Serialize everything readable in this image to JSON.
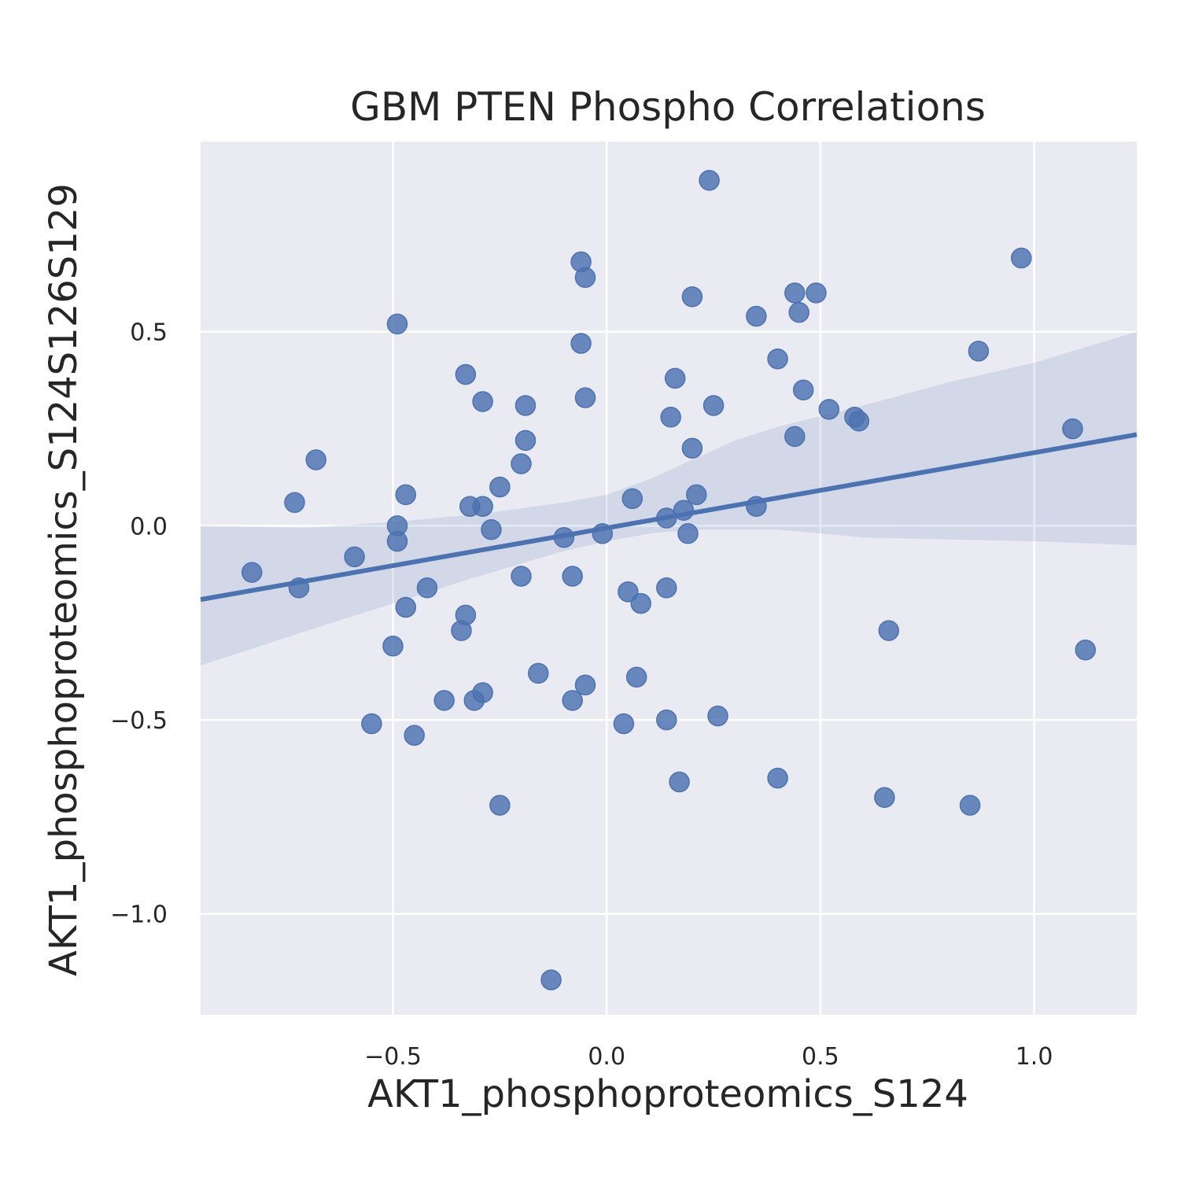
{
  "chart_data": {
    "type": "scatter",
    "title": "GBM PTEN Phospho Correlations",
    "xlabel": "AKT1_phosphoproteomics_S124",
    "ylabel": "AKT1_phosphoproteomics_S124S126S129",
    "xlim": [
      -0.95,
      1.24
    ],
    "ylim": [
      -1.26,
      0.99
    ],
    "xticks": [
      {
        "value": -0.5,
        "label": "−0.5"
      },
      {
        "value": 0.0,
        "label": "0.0"
      },
      {
        "value": 0.5,
        "label": "0.5"
      },
      {
        "value": 1.0,
        "label": "1.0"
      }
    ],
    "yticks": [
      {
        "value": 0.5,
        "label": "0.5"
      },
      {
        "value": 0.0,
        "label": "0.0"
      },
      {
        "value": -0.5,
        "label": "−0.5"
      },
      {
        "value": -1.0,
        "label": "−1.0"
      }
    ],
    "grid": true,
    "colors": {
      "background": "#eaeaf2",
      "grid": "#ffffff",
      "points": "#4c72b0",
      "line": "#4c72b0",
      "band": "#4c72b0"
    },
    "points": [
      {
        "x": 0.24,
        "y": 0.89
      },
      {
        "x": -0.06,
        "y": 0.68
      },
      {
        "x": -0.05,
        "y": 0.64
      },
      {
        "x": 0.97,
        "y": 0.69
      },
      {
        "x": 0.2,
        "y": 0.59
      },
      {
        "x": 0.44,
        "y": 0.6
      },
      {
        "x": 0.49,
        "y": 0.6
      },
      {
        "x": 0.35,
        "y": 0.54
      },
      {
        "x": 0.45,
        "y": 0.55
      },
      {
        "x": -0.49,
        "y": 0.52
      },
      {
        "x": -0.06,
        "y": 0.47
      },
      {
        "x": 0.4,
        "y": 0.43
      },
      {
        "x": 0.87,
        "y": 0.45
      },
      {
        "x": -0.33,
        "y": 0.39
      },
      {
        "x": 0.16,
        "y": 0.38
      },
      {
        "x": 0.46,
        "y": 0.35
      },
      {
        "x": -0.05,
        "y": 0.33
      },
      {
        "x": -0.29,
        "y": 0.32
      },
      {
        "x": -0.19,
        "y": 0.31
      },
      {
        "x": 0.25,
        "y": 0.31
      },
      {
        "x": 0.52,
        "y": 0.3
      },
      {
        "x": 0.15,
        "y": 0.28
      },
      {
        "x": 0.58,
        "y": 0.28
      },
      {
        "x": 0.59,
        "y": 0.27
      },
      {
        "x": 1.09,
        "y": 0.25
      },
      {
        "x": 0.44,
        "y": 0.23
      },
      {
        "x": -0.19,
        "y": 0.22
      },
      {
        "x": 0.2,
        "y": 0.2
      },
      {
        "x": -0.68,
        "y": 0.17
      },
      {
        "x": -0.2,
        "y": 0.16
      },
      {
        "x": -0.25,
        "y": 0.1
      },
      {
        "x": -0.47,
        "y": 0.08
      },
      {
        "x": 0.21,
        "y": 0.08
      },
      {
        "x": 0.06,
        "y": 0.07
      },
      {
        "x": -0.73,
        "y": 0.06
      },
      {
        "x": -0.32,
        "y": 0.05
      },
      {
        "x": -0.29,
        "y": 0.05
      },
      {
        "x": 0.35,
        "y": 0.05
      },
      {
        "x": 0.18,
        "y": 0.04
      },
      {
        "x": 0.14,
        "y": 0.02
      },
      {
        "x": -0.49,
        "y": 0.0
      },
      {
        "x": -0.27,
        "y": -0.01
      },
      {
        "x": -0.01,
        "y": -0.02
      },
      {
        "x": 0.19,
        "y": -0.02
      },
      {
        "x": -0.1,
        "y": -0.03
      },
      {
        "x": -0.49,
        "y": -0.04
      },
      {
        "x": -0.59,
        "y": -0.08
      },
      {
        "x": -0.83,
        "y": -0.12
      },
      {
        "x": -0.2,
        "y": -0.13
      },
      {
        "x": -0.08,
        "y": -0.13
      },
      {
        "x": -0.72,
        "y": -0.16
      },
      {
        "x": -0.42,
        "y": -0.16
      },
      {
        "x": 0.14,
        "y": -0.16
      },
      {
        "x": 0.05,
        "y": -0.17
      },
      {
        "x": 0.08,
        "y": -0.2
      },
      {
        "x": -0.47,
        "y": -0.21
      },
      {
        "x": -0.33,
        "y": -0.23
      },
      {
        "x": -0.34,
        "y": -0.27
      },
      {
        "x": 0.66,
        "y": -0.27
      },
      {
        "x": -0.5,
        "y": -0.31
      },
      {
        "x": 1.12,
        "y": -0.32
      },
      {
        "x": -0.16,
        "y": -0.38
      },
      {
        "x": 0.07,
        "y": -0.39
      },
      {
        "x": -0.05,
        "y": -0.41
      },
      {
        "x": -0.29,
        "y": -0.43
      },
      {
        "x": -0.38,
        "y": -0.45
      },
      {
        "x": -0.31,
        "y": -0.45
      },
      {
        "x": -0.08,
        "y": -0.45
      },
      {
        "x": 0.26,
        "y": -0.49
      },
      {
        "x": 0.14,
        "y": -0.5
      },
      {
        "x": -0.55,
        "y": -0.51
      },
      {
        "x": 0.04,
        "y": -0.51
      },
      {
        "x": -0.45,
        "y": -0.54
      },
      {
        "x": 0.4,
        "y": -0.65
      },
      {
        "x": 0.17,
        "y": -0.66
      },
      {
        "x": 0.65,
        "y": -0.7
      },
      {
        "x": -0.25,
        "y": -0.72
      },
      {
        "x": 0.85,
        "y": -0.72
      },
      {
        "x": -0.13,
        "y": -1.17
      }
    ],
    "regression": {
      "start": {
        "x": -0.95,
        "y": -0.19
      },
      "end": {
        "x": 1.24,
        "y": 0.235
      }
    },
    "confidence_band": {
      "x": [
        -0.95,
        -0.7,
        -0.5,
        -0.3,
        -0.1,
        0.0,
        0.1,
        0.2,
        0.3,
        0.4,
        0.6,
        0.8,
        1.0,
        1.24
      ],
      "upper": [
        0.0,
        -0.005,
        0.01,
        0.03,
        0.06,
        0.08,
        0.12,
        0.17,
        0.22,
        0.255,
        0.31,
        0.37,
        0.42,
        0.5
      ],
      "lower": [
        -0.36,
        -0.27,
        -0.2,
        -0.13,
        -0.065,
        -0.04,
        -0.02,
        -0.01,
        -0.01,
        -0.01,
        -0.03,
        -0.035,
        -0.04,
        -0.05
      ]
    }
  }
}
